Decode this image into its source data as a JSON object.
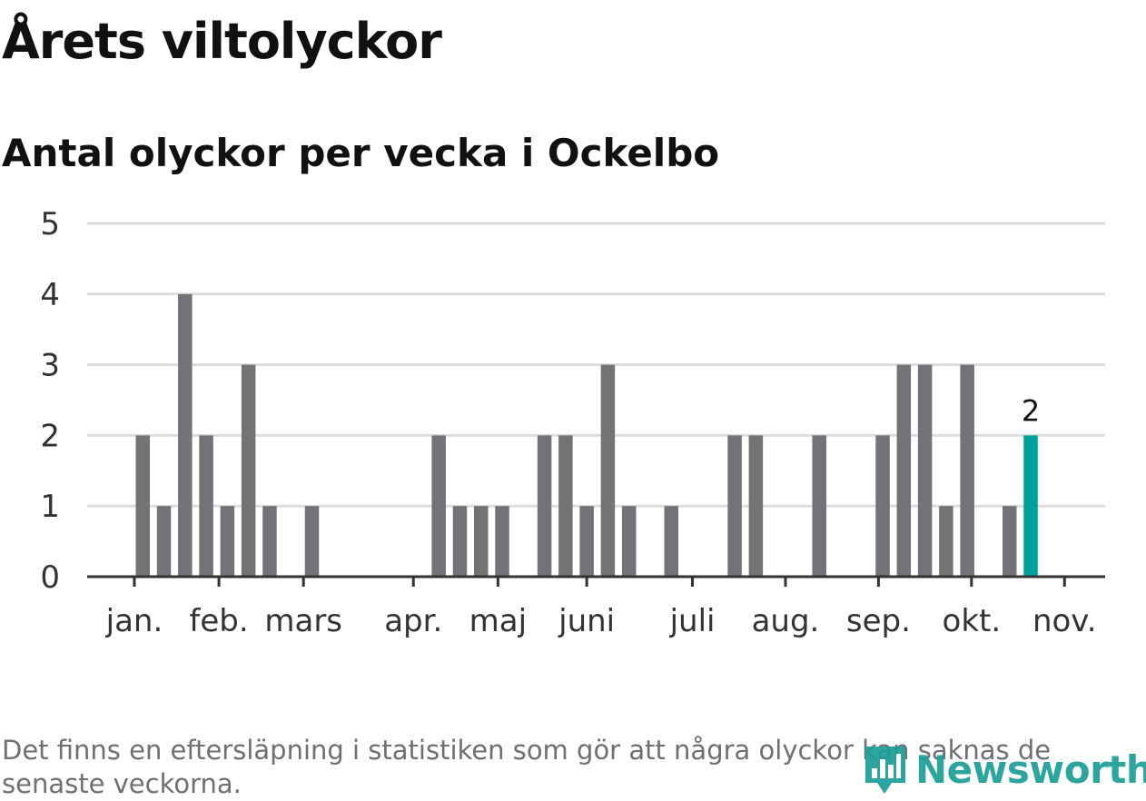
{
  "title": "Årets viltolyckor",
  "subtitle": "Antal olyckor per vecka i Ockelbo",
  "footnote": "Det finns en eftersläpning i statistiken som gör att några olyckor kan saknas de senaste veckorna.",
  "logo_text": "Newsworthy",
  "colors": {
    "bar": "#727277",
    "highlight": "#00a19a",
    "grid": "#dddddd",
    "axis": "#333333",
    "text": "#333333"
  },
  "chart_data": {
    "type": "bar",
    "title": "Årets viltolyckor",
    "subtitle": "Antal olyckor per vecka i Ockelbo",
    "xlabel": "",
    "ylabel": "",
    "ylim": [
      0,
      5
    ],
    "y_ticks": [
      0,
      1,
      2,
      3,
      4,
      5
    ],
    "grid": true,
    "weeks": [
      1,
      2,
      3,
      4,
      5,
      6,
      7,
      8,
      9,
      10,
      11,
      12,
      13,
      14,
      15,
      16,
      17,
      18,
      19,
      20,
      21,
      22,
      23,
      24,
      25,
      26,
      27,
      28,
      29,
      30,
      31,
      32,
      33,
      34,
      35,
      36,
      37,
      38,
      39,
      40,
      41,
      42,
      43,
      44,
      45
    ],
    "values": [
      0,
      0,
      2,
      1,
      4,
      2,
      1,
      3,
      1,
      0,
      1,
      0,
      0,
      0,
      0,
      0,
      2,
      1,
      1,
      1,
      0,
      2,
      2,
      1,
      3,
      1,
      0,
      1,
      0,
      0,
      2,
      2,
      0,
      0,
      2,
      0,
      0,
      2,
      3,
      3,
      1,
      3,
      0,
      1,
      2
    ],
    "highlight_index": 44,
    "highlight_label": "2",
    "month_ticks": [
      {
        "label": "jan.",
        "week": 2.6
      },
      {
        "label": "feb.",
        "week": 6.6
      },
      {
        "label": "mars",
        "week": 10.6
      },
      {
        "label": "apr.",
        "week": 15.8
      },
      {
        "label": "maj",
        "week": 19.8
      },
      {
        "label": "juni",
        "week": 24.0
      },
      {
        "label": "juli",
        "week": 29.0
      },
      {
        "label": "aug.",
        "week": 33.4
      },
      {
        "label": "sep.",
        "week": 37.8
      },
      {
        "label": "okt.",
        "week": 42.2
      },
      {
        "label": "nov.",
        "week": 46.6
      }
    ]
  }
}
